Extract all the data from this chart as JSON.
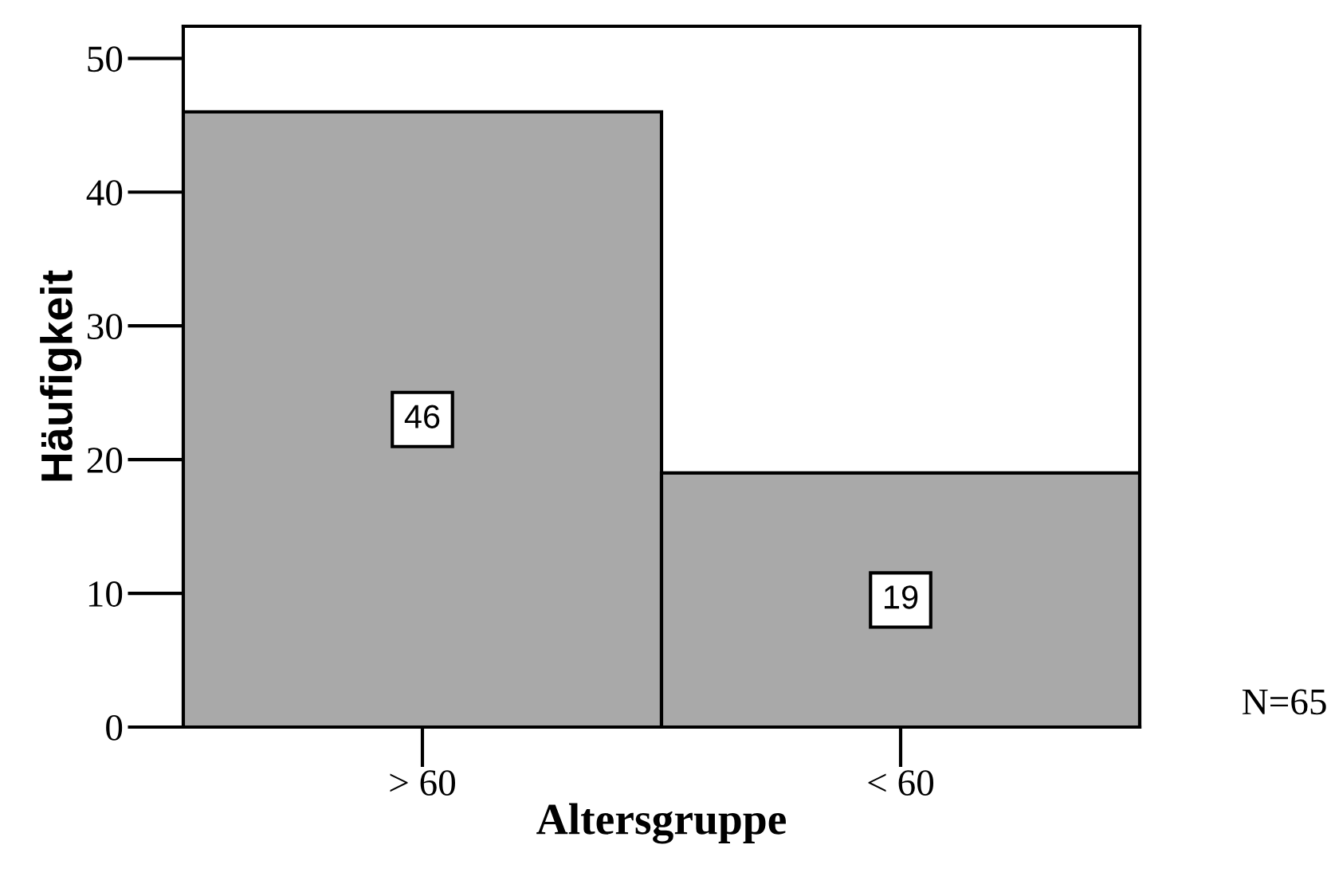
{
  "chart_data": {
    "type": "bar",
    "xlabel": "Altersgruppe",
    "ylabel": "Häufigkeit",
    "categories": [
      "> 60",
      "< 60"
    ],
    "values": [
      46,
      19
    ],
    "color": "#a9a9a9",
    "ylim": [
      0,
      52.4
    ],
    "yticks": [
      0,
      10,
      20,
      30,
      40,
      50
    ],
    "grid": false,
    "data_labels": true,
    "annotations": [
      "N=65"
    ]
  }
}
